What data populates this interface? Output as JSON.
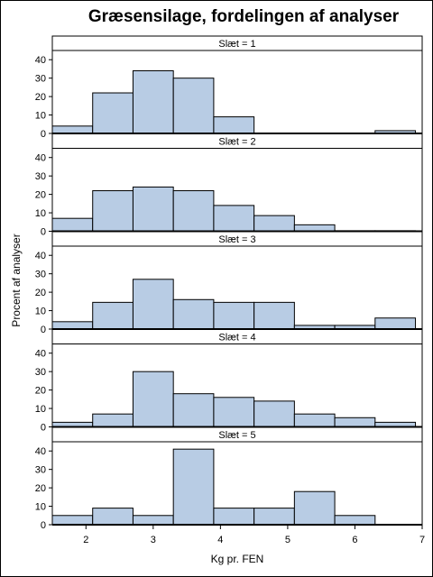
{
  "chart_data": {
    "type": "bar",
    "title": "Græsensilage, fordelingen af analyser",
    "xlabel": "Kg pr. FEN",
    "ylabel": "Procent af analyser",
    "xlim": [
      1.5,
      7.0
    ],
    "xticks": [
      2,
      3,
      4,
      5,
      6,
      7
    ],
    "ylim": [
      0,
      45
    ],
    "yticks": [
      0,
      10,
      20,
      30,
      40
    ],
    "bin_edges": [
      1.5,
      2.1,
      2.7,
      3.3,
      3.9,
      4.5,
      5.1,
      5.7,
      6.3,
      6.9
    ],
    "panels": [
      {
        "label": "Slæt = 1",
        "values": [
          4,
          22,
          34,
          30,
          9,
          0,
          0,
          0,
          1.5
        ]
      },
      {
        "label": "Slæt = 2",
        "values": [
          7,
          22,
          24,
          22,
          14,
          8.5,
          3.5,
          0.3,
          0.3
        ]
      },
      {
        "label": "Slæt = 3",
        "values": [
          4,
          14.5,
          27,
          16,
          14.5,
          14.5,
          2,
          2,
          6
        ]
      },
      {
        "label": "Slæt = 4",
        "values": [
          2.5,
          7,
          30,
          18,
          16,
          14,
          7,
          5,
          2.5
        ]
      },
      {
        "label": "Slæt = 5",
        "values": [
          5,
          9,
          5,
          41,
          9,
          9,
          18,
          5,
          0
        ]
      }
    ]
  }
}
